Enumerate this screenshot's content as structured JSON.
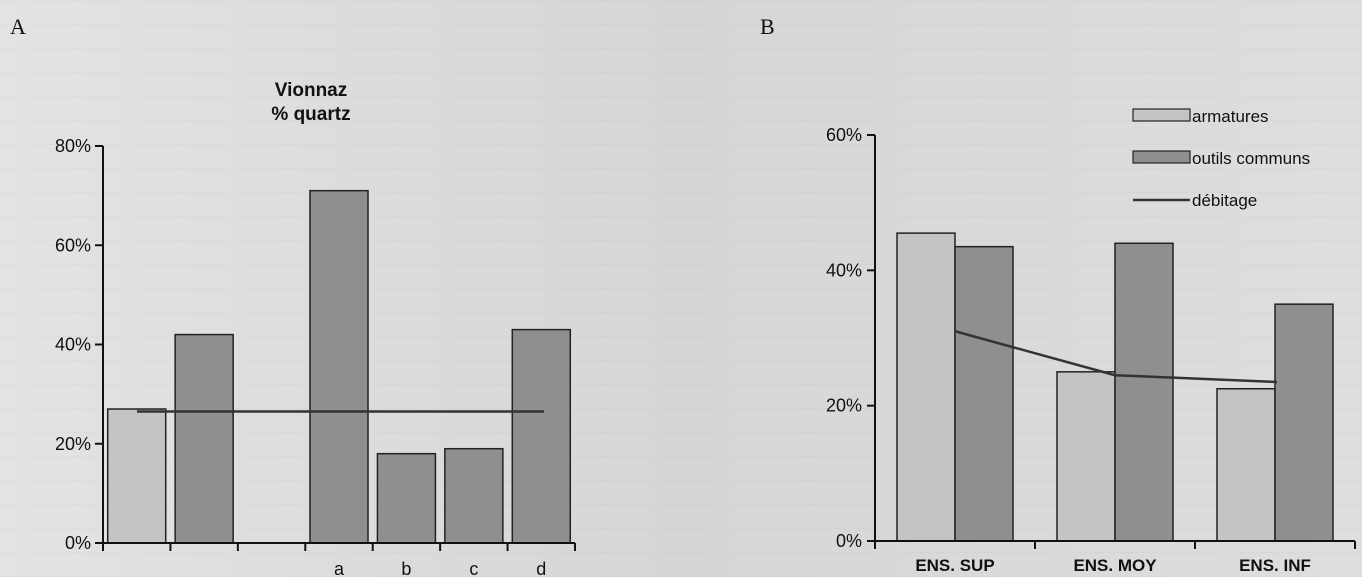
{
  "panels": {
    "a": {
      "letter": "A"
    },
    "b": {
      "letter": "B"
    }
  },
  "colors": {
    "light_bar": "#c4c4c4",
    "dark_bar": "#8f8f8f",
    "line": "#333333",
    "axis": "#111111"
  },
  "chart_data": [
    {
      "type": "bar",
      "title": "Vionnaz\n% quartz",
      "categories": [
        "",
        "",
        "",
        "a",
        "b",
        "c",
        "d"
      ],
      "ylim": [
        0,
        80
      ],
      "yticks": [
        "0%",
        "20%",
        "40%",
        "60%",
        "80%"
      ],
      "bars": [
        {
          "slot": 0,
          "value": 27,
          "style": "light"
        },
        {
          "slot": 1,
          "value": 42,
          "style": "dark"
        },
        {
          "slot": 3,
          "value": 71,
          "style": "dark"
        },
        {
          "slot": 4,
          "value": 18,
          "style": "dark"
        },
        {
          "slot": 5,
          "value": 19,
          "style": "dark"
        },
        {
          "slot": 6,
          "value": 43,
          "style": "dark"
        }
      ],
      "reference_line": 26.5
    },
    {
      "type": "bar",
      "categories": [
        "ENS. SUP",
        "ENS. MOY",
        "ENS. INF"
      ],
      "ylim": [
        0,
        60
      ],
      "yticks": [
        "0%",
        "20%",
        "40%",
        "60%"
      ],
      "series": [
        {
          "name": "armatures",
          "style": "light",
          "values": [
            45.5,
            25,
            22.5
          ]
        },
        {
          "name": "outils communs",
          "style": "dark",
          "values": [
            43.5,
            44,
            35
          ]
        },
        {
          "name": "débitage",
          "style": "line",
          "values": [
            31,
            24.5,
            23.5
          ]
        }
      ],
      "legend": "top-right"
    }
  ]
}
